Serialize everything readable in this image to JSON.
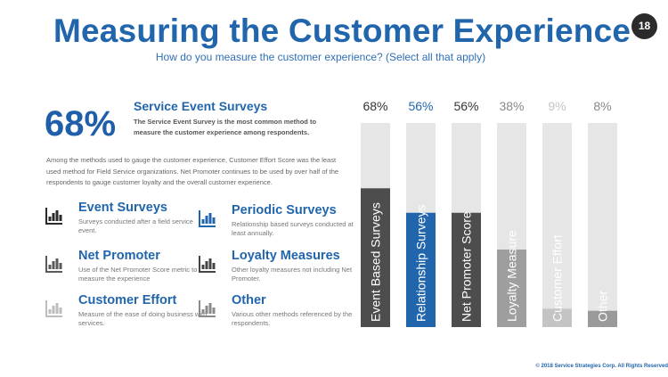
{
  "title": "Measuring the Customer Experience",
  "subtitle": "How do you measure the customer experience? (Select all that apply)",
  "page_number": "18",
  "highlight": {
    "percent": "68%",
    "title": "Service Event Surveys",
    "text": "The Service Event Survey is the most common method to measure the customer experience among respondents."
  },
  "paragraph": "Among the methods used to gauge the customer experience, Customer Effort Score was the least used method for Field Service organizations. Net Promoter continues to be used by over half of the respondents to gauge customer loyalty and the overall customer experience.",
  "methods": [
    {
      "title": "Event Surveys",
      "desc": "Surveys conducted after a field service event.",
      "icon": "bar-chart-icon",
      "color": "#2b2b2b"
    },
    {
      "title": "Periodic Surveys",
      "desc": "Relationship based surveys conducted at least annually.",
      "icon": "bar-chart-icon",
      "color": "#2166ac"
    },
    {
      "title": "Net Promoter",
      "desc": "Use of the Net Promoter Score metric to measure the experience",
      "icon": "bar-chart-icon",
      "color": "#5a5a5a"
    },
    {
      "title": "Loyalty Measures",
      "desc": "Other loyalty measures not including Net Promoter.",
      "icon": "bar-chart-icon",
      "color": "#444444"
    },
    {
      "title": "Customer Effort",
      "desc": "Measure of the ease of doing business with services.",
      "icon": "bar-chart-icon",
      "color": "#bdbdbd"
    },
    {
      "title": "Other",
      "desc": "Various other methods referenced by the respondents.",
      "icon": "bar-chart-icon",
      "color": "#8a8a8a"
    }
  ],
  "copyright": "© 2018 Service Strategies Corp. All Rights Reserved",
  "chart_data": {
    "type": "bar",
    "orientation": "vertical",
    "categories": [
      "Event Based Surveys",
      "Relationship Surveys",
      "Net Promoter Score",
      "Loyalty Measure",
      "Customer Effort",
      "Other"
    ],
    "values": [
      68,
      56,
      56,
      38,
      9,
      8
    ],
    "value_labels": [
      "68%",
      "56%",
      "56%",
      "38%",
      "9%",
      "8%"
    ],
    "ylim": [
      0,
      100
    ],
    "bar_colors": [
      "#4d4d4d",
      "#2166ac",
      "#4d4d4d",
      "#9e9e9e",
      "#c4c4c4",
      "#9a9a9a"
    ],
    "label_colors": [
      "#333333",
      "#2166ac",
      "#333333",
      "#888888",
      "#c4c4c4",
      "#888888"
    ],
    "background_color": "#e6e6e6"
  }
}
